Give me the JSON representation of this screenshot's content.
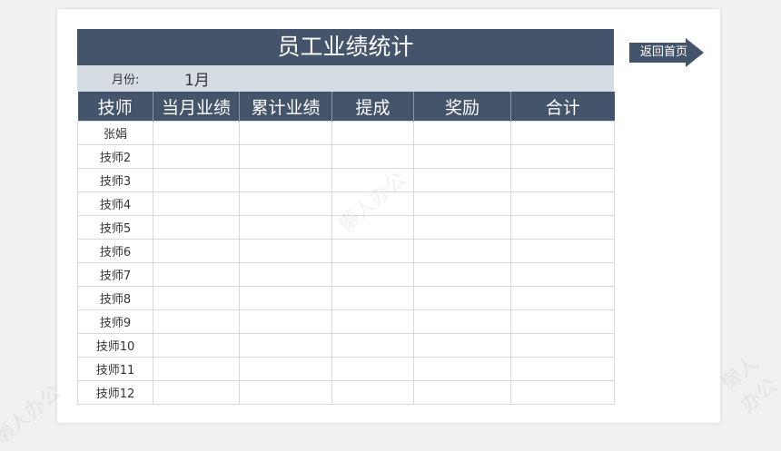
{
  "title": "员工业绩统计",
  "month": {
    "label": "月份:",
    "value": "1月"
  },
  "back_button": "返回首页",
  "columns": [
    "技师",
    "当月业绩",
    "累计业绩",
    "提成",
    "奖励",
    "合计"
  ],
  "rows": [
    "张娟",
    "技师2",
    "技师3",
    "技师4",
    "技师5",
    "技师6",
    "技师7",
    "技师8",
    "技师9",
    "技师10",
    "技师11",
    "技师12"
  ],
  "watermark": "懒人办公",
  "colors": {
    "header": "#44546a",
    "month_bar": "#d6dce4"
  }
}
